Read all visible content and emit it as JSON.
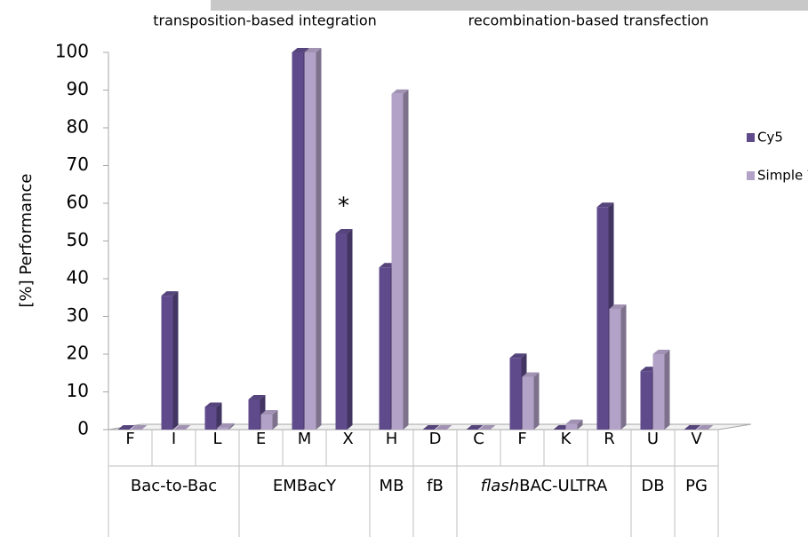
{
  "chart_data": {
    "type": "bar3d",
    "headers": [
      "transposition-based integration",
      "recombination-based transfection"
    ],
    "y_label": "[%] Performance",
    "annotation": "*",
    "groups": [
      {
        "parts": [
          {
            "text": "Bac-to-Bac"
          }
        ],
        "categories": [
          "F",
          "I",
          "L"
        ]
      },
      {
        "parts": [
          {
            "text": "EMBacY"
          }
        ],
        "categories": [
          "E",
          "M",
          "X"
        ]
      },
      {
        "parts": [
          {
            "text": "MB"
          }
        ],
        "categories": [
          "H"
        ]
      },
      {
        "parts": [
          {
            "text": "fB"
          }
        ],
        "categories": [
          "D"
        ]
      },
      {
        "parts": [
          {
            "text": "flash",
            "italic": true
          },
          {
            "text": "BAC-ULTRA"
          }
        ],
        "categories": [
          "C",
          "F",
          "K",
          "R"
        ]
      },
      {
        "parts": [
          {
            "text": "DB"
          }
        ],
        "categories": [
          "U"
        ]
      },
      {
        "parts": [
          {
            "text": "PG"
          }
        ],
        "categories": [
          "V"
        ]
      }
    ],
    "series": [
      {
        "name": "Cy5",
        "color": "#5f4b8b",
        "values": [
          0,
          35.5,
          6,
          8,
          100,
          52,
          43,
          0,
          0,
          19,
          0,
          59,
          15.5,
          0
        ]
      },
      {
        "name": "Simple Western",
        "color": "#b3a2c7",
        "values": [
          0,
          0,
          0.5,
          4,
          100,
          null,
          89,
          0,
          0,
          14,
          1.5,
          32,
          20,
          0
        ]
      }
    ],
    "ylim": [
      0,
      100
    ],
    "yticks": [
      0,
      10,
      20,
      30,
      40,
      50,
      60,
      70,
      80,
      90,
      100
    ]
  }
}
